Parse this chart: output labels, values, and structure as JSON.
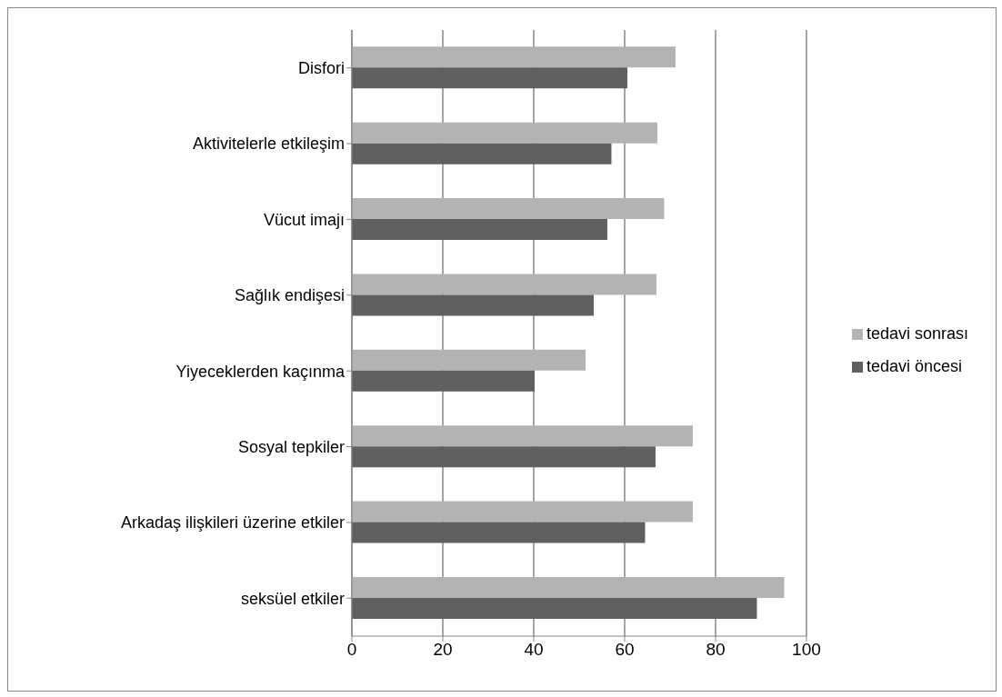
{
  "chart_data": {
    "type": "bar",
    "orientation": "horizontal",
    "categories": [
      "Disfori",
      "Aktivitelerle etkileşim",
      "Vücut imajı",
      "Sağlık endişesi",
      "Yiyeceklerden kaçınma",
      "Sosyal tepkiler",
      "Arkadaş ilişkileri üzerine etkiler",
      "seksüel etkiler"
    ],
    "series": [
      {
        "name": "tedavi sonrası",
        "color": "#b3b3b3",
        "values": [
          71.2,
          67.2,
          68.7,
          67.0,
          51.4,
          75.0,
          75.0,
          95.1
        ]
      },
      {
        "name": "tedavi öncesi",
        "color": "#606060",
        "values": [
          60.6,
          57.1,
          56.2,
          53.2,
          40.2,
          66.8,
          64.5,
          89.1
        ]
      }
    ],
    "xlim": [
      0,
      100
    ],
    "xticks": [
      0,
      20,
      40,
      60,
      80,
      100
    ],
    "grid": "x",
    "legend": "right"
  }
}
